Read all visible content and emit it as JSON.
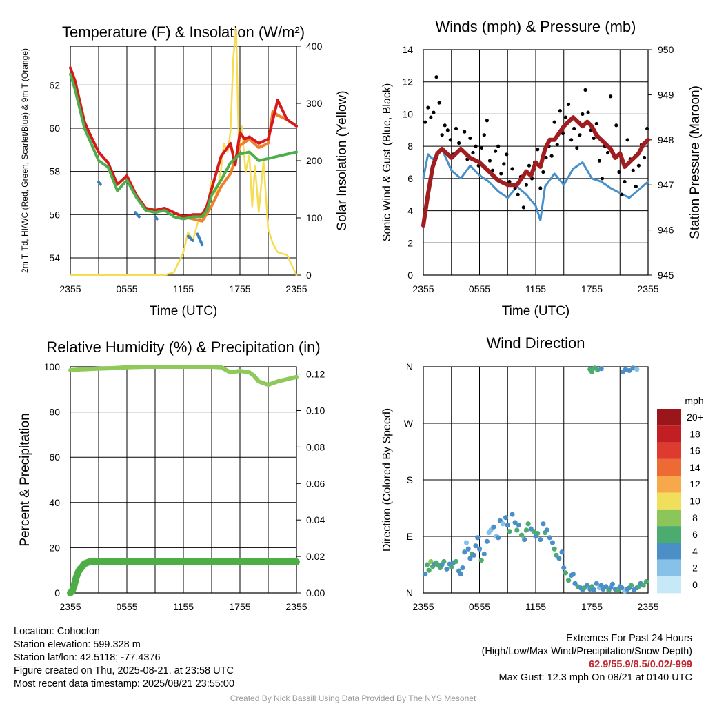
{
  "chart_data": [
    {
      "type": "line",
      "title": "Temperature (F) & Insolation (W/m²)",
      "xlabel": "Time (UTC)",
      "ylabel": "2m T, Td, HI/WC (Red, Green, Scarlet/Blue) & 9m T (Orange)",
      "y2label": "Solar Insolation (Yellow)",
      "x_ticks": [
        "2355",
        "0555",
        "1155",
        "1755",
        "2355"
      ],
      "ylim": [
        53.2,
        63.8
      ],
      "y_ticks": [
        54,
        56,
        58,
        60,
        62
      ],
      "y2lim": [
        0,
        400
      ],
      "y2_ticks": [
        0,
        100,
        200,
        300,
        400
      ],
      "grid": true,
      "colors": {
        "temp": "#d7191c",
        "dewpoint": "#4daf4a",
        "hiwc": "#3a7fbf",
        "t9m": "#f07f2c",
        "solar": "#f5dc50"
      },
      "series": [
        {
          "key": "temp",
          "x": [
            0,
            0.5,
            1.5,
            2,
            3,
            4,
            5,
            6,
            7,
            8,
            9,
            10,
            11,
            12,
            13,
            14,
            14.5,
            15,
            16,
            17,
            17.5,
            18,
            18.5,
            19,
            20,
            21,
            22,
            23,
            24
          ],
          "values": [
            62.8,
            62.2,
            60.3,
            59.8,
            58.9,
            58.4,
            57.4,
            57.8,
            56.9,
            56.3,
            56.2,
            56.3,
            56.1,
            55.9,
            56.0,
            56.0,
            56.4,
            57.2,
            58.7,
            59.3,
            58.3,
            59.8,
            59.5,
            59.6,
            59.3,
            59.5,
            61.3,
            60.4,
            60.1
          ]
        },
        {
          "key": "dewpoint",
          "x": [
            0,
            0.5,
            1.5,
            2,
            3,
            4,
            5,
            6,
            7,
            8,
            9,
            10,
            11,
            12,
            13,
            14,
            14.5,
            15,
            16,
            17,
            18,
            19,
            20,
            21,
            22,
            23,
            24
          ],
          "values": [
            62.5,
            61.8,
            60.0,
            59.5,
            58.5,
            58.2,
            57.1,
            57.6,
            56.8,
            56.2,
            56.1,
            56.2,
            55.9,
            55.8,
            55.9,
            55.9,
            56.2,
            56.9,
            57.6,
            58.4,
            58.8,
            58.9,
            58.5,
            58.6,
            58.7,
            58.8,
            58.9
          ]
        },
        {
          "key": "t9m",
          "x": [
            12,
            13,
            14,
            15,
            16,
            17,
            18,
            19,
            20,
            21,
            21.5,
            22,
            23,
            24
          ],
          "values": [
            55.9,
            55.8,
            55.7,
            56.4,
            57.3,
            57.9,
            59.2,
            59.5,
            59.1,
            59.3,
            60.8,
            60.6,
            60.4,
            60.1
          ]
        },
        {
          "key": "hiwc",
          "x": [
            3,
            3.2,
            6.9,
            7.3,
            9,
            9.2,
            12.5,
            13,
            13.5,
            14,
            14.3
          ],
          "values": [
            57.5,
            57.4,
            56.1,
            55.9,
            55.9,
            55.8,
            55.0,
            54.8,
            55.1,
            54.6,
            55.3
          ]
        },
        {
          "key": "solar",
          "axis": "y2",
          "x": [
            0,
            10,
            11,
            12,
            12.5,
            13,
            13.5,
            14,
            14.5,
            15,
            15.5,
            16,
            16.3,
            16.7,
            17,
            17.3,
            17.6,
            17.9,
            18.2,
            18.6,
            19,
            19.3,
            19.6,
            20,
            20.5,
            21,
            21.5,
            22,
            23,
            24
          ],
          "values": [
            0,
            0,
            5,
            40,
            75,
            60,
            90,
            110,
            115,
            165,
            140,
            185,
            230,
            215,
            250,
            380,
            430,
            215,
            260,
            180,
            210,
            120,
            190,
            110,
            200,
            80,
            55,
            40,
            35,
            0
          ]
        }
      ]
    },
    {
      "type": "line",
      "title": "Winds (mph) & Pressure (mb)",
      "xlabel": "Time (UTC)",
      "ylabel": "Sonic Wind & Gust (Blue, Black)",
      "y2label": "Station Pressure (Maroon)",
      "x_ticks": [
        "2355",
        "0555",
        "1155",
        "1755",
        "2355"
      ],
      "ylim": [
        0,
        14
      ],
      "y_ticks": [
        0,
        2,
        4,
        6,
        8,
        10,
        12,
        14
      ],
      "y2lim": [
        945,
        950
      ],
      "y2_ticks": [
        945,
        946,
        947,
        948,
        949,
        950
      ],
      "grid": true,
      "colors": {
        "wind": "#4a90c8",
        "gust": "#000000",
        "pressure": "#a01d20"
      },
      "series": [
        {
          "key": "wind",
          "x": [
            0,
            0.5,
            1,
            2,
            3,
            4,
            5,
            6,
            7,
            8,
            9,
            10,
            11,
            12,
            12.5,
            13,
            14,
            15,
            16,
            17,
            18,
            19,
            20,
            21,
            22,
            23,
            24
          ],
          "values": [
            6.0,
            7.5,
            7.2,
            7.8,
            6.5,
            6.0,
            6.8,
            6.2,
            5.8,
            5.2,
            4.8,
            5.5,
            5.0,
            4.3,
            3.4,
            5.5,
            6.3,
            5.6,
            6.6,
            7.0,
            6.0,
            5.8,
            5.4,
            5.1,
            4.8,
            5.3,
            5.8
          ]
        },
        {
          "key": "gust",
          "x": [
            0.2,
            0.5,
            0.8,
            1.1,
            1.4,
            1.7,
            2.0,
            2.3,
            2.6,
            2.9,
            3.2,
            3.5,
            3.8,
            4.1,
            4.4,
            4.7,
            5.0,
            5.3,
            5.6,
            5.9,
            6.2,
            6.5,
            6.8,
            7.1,
            7.4,
            7.7,
            8.0,
            8.3,
            8.6,
            8.9,
            9.2,
            9.5,
            9.8,
            10.1,
            10.4,
            10.7,
            11.0,
            11.3,
            11.6,
            11.9,
            12.2,
            12.5,
            12.8,
            13.1,
            13.4,
            13.7,
            14.0,
            14.3,
            14.6,
            14.9,
            15.2,
            15.5,
            15.8,
            16.1,
            16.4,
            16.7,
            17.0,
            17.3,
            17.6,
            17.9,
            18.2,
            18.5,
            18.8,
            19.1,
            19.4,
            19.7,
            20.0,
            20.3,
            20.6,
            20.9,
            21.2,
            21.5,
            21.8,
            22.1,
            22.4,
            22.7,
            23.0,
            23.3,
            23.6,
            23.9
          ],
          "values": [
            9.5,
            10.4,
            9.8,
            10.1,
            12.3,
            10.7,
            8.7,
            9.3,
            9.0,
            8.4,
            7.5,
            9.1,
            8.2,
            7.8,
            8.9,
            7.2,
            8.5,
            7.6,
            8.0,
            6.8,
            7.9,
            8.7,
            9.6,
            7.1,
            6.5,
            7.7,
            8.0,
            6.3,
            6.9,
            7.5,
            5.8,
            6.6,
            5.4,
            5.0,
            6.1,
            4.2,
            5.6,
            6.8,
            6.0,
            7.0,
            7.8,
            5.4,
            6.4,
            7.3,
            8.0,
            7.4,
            9.5,
            8.1,
            10.2,
            8.8,
            9.8,
            10.6,
            8.4,
            9.1,
            7.9,
            8.7,
            10.0,
            11.5,
            10.1,
            9.0,
            8.5,
            9.4,
            7.1,
            6.0,
            8.0,
            7.6,
            11.1,
            7.4,
            9.3,
            6.4,
            5.0,
            5.8,
            8.4,
            7.2,
            6.5,
            5.5,
            6.8,
            8.1,
            7.3,
            9.1
          ]
        },
        {
          "key": "pressure",
          "axis": "y2",
          "x": [
            0,
            0.5,
            1,
            1.5,
            2,
            3,
            4,
            5,
            6,
            7,
            8,
            9,
            10,
            11,
            11.5,
            12,
            12.5,
            13,
            13.5,
            14,
            15,
            16,
            17,
            17.5,
            18,
            18.5,
            19,
            20,
            20.5,
            21,
            21.5,
            22,
            23,
            23.5,
            24
          ],
          "values": [
            946.1,
            946.8,
            947.4,
            947.7,
            947.8,
            947.6,
            947.8,
            947.6,
            947.5,
            947.3,
            947.1,
            947.0,
            947.0,
            947.3,
            947.2,
            947.5,
            947.4,
            947.8,
            948.0,
            948.0,
            948.3,
            948.5,
            948.3,
            948.4,
            948.3,
            948.1,
            948.0,
            947.8,
            947.6,
            947.7,
            947.4,
            947.5,
            947.7,
            947.9,
            948.0
          ]
        }
      ]
    },
    {
      "type": "line",
      "title": "Relative Humidity (%) & Precipitation (in)",
      "ylabel": "Percent & Precipitation",
      "x_ticks": [
        "2355",
        "0555",
        "1155",
        "1755",
        "2355"
      ],
      "ylim": [
        0,
        100
      ],
      "y_ticks": [
        0,
        20,
        40,
        60,
        80,
        100
      ],
      "y2lim": [
        0,
        0.124
      ],
      "y2_ticks": [
        "0.00",
        "0.02",
        "0.04",
        "0.06",
        "0.08",
        "0.10",
        "0.12"
      ],
      "grid": true,
      "colors": {
        "rh": "#8fc95a",
        "precip": "#4dae45"
      },
      "series": [
        {
          "key": "rh",
          "x": [
            0,
            1,
            2,
            3,
            4,
            5,
            6,
            8,
            10,
            12,
            14,
            15,
            16,
            17,
            18,
            19,
            19.5,
            20,
            21,
            22,
            23,
            24
          ],
          "values": [
            98.5,
            98.8,
            99.0,
            99.2,
            99.3,
            99.5,
            99.8,
            100,
            100,
            100,
            100,
            100,
            99.8,
            97.5,
            98.2,
            97.5,
            96.0,
            93.5,
            92.0,
            93.5,
            94.5,
            95.5
          ]
        },
        {
          "key": "precip",
          "axis": "y2",
          "x": [
            0,
            0.2,
            0.4,
            0.6,
            0.8,
            1.0,
            1.2,
            1.5,
            2,
            3,
            6,
            12,
            18,
            24
          ],
          "values": [
            0,
            0.001,
            0.004,
            0.008,
            0.011,
            0.013,
            0.014,
            0.016,
            0.017,
            0.017,
            0.017,
            0.017,
            0.017,
            0.017
          ]
        }
      ]
    },
    {
      "type": "scatter",
      "title": "Wind Direction",
      "ylabel": "Direction (Colored By Speed)",
      "x_ticks": [
        "2355",
        "0555",
        "1155",
        "1755",
        "2355"
      ],
      "ylim": [
        0,
        360
      ],
      "y_ticks": [
        "N",
        "E",
        "S",
        "W",
        "N"
      ],
      "grid": true,
      "legend": {
        "title": "mph",
        "labels": [
          "0",
          "2",
          "4",
          "6",
          "8",
          "10",
          "12",
          "14",
          "16",
          "18",
          "20+"
        ],
        "colors": [
          "#c6e8f7",
          "#86c2e8",
          "#4b8fc8",
          "#4cab6e",
          "#8cc65a",
          "#f1de5b",
          "#f7a84a",
          "#ee6a35",
          "#de3a2f",
          "#c21f24",
          "#9a161b"
        ]
      },
      "points": {
        "x": [
          0.2,
          0.4,
          0.6,
          0.8,
          1.0,
          1.2,
          1.4,
          1.6,
          1.8,
          2.0,
          2.2,
          2.5,
          2.8,
          3.0,
          3.2,
          3.5,
          3.8,
          4.0,
          4.2,
          4.4,
          4.6,
          4.8,
          5.0,
          5.2,
          5.4,
          5.6,
          5.8,
          6.0,
          6.2,
          6.5,
          6.8,
          7.0,
          7.2,
          7.5,
          7.8,
          8.0,
          8.2,
          8.5,
          8.8,
          9.0,
          9.2,
          9.5,
          9.8,
          10.0,
          10.2,
          10.5,
          10.8,
          11.0,
          11.2,
          11.5,
          11.8,
          12.0,
          12.2,
          12.5,
          12.8,
          13.0,
          13.2,
          13.5,
          13.8,
          14.0,
          14.2,
          14.5,
          14.8,
          15.0,
          15.2,
          15.5,
          15.8,
          16.0,
          16.2,
          16.5,
          16.8,
          17.0,
          17.2,
          17.5,
          17.8,
          18.0,
          18.2,
          18.5,
          18.8,
          19.0,
          19.2,
          19.5,
          19.8,
          20.0,
          20.2,
          20.5,
          20.8,
          21.0,
          21.2,
          21.5,
          21.8,
          22.0,
          22.2,
          22.5,
          22.8,
          23.0,
          23.2,
          23.5,
          23.8,
          17.8,
          18.0,
          18.3,
          18.6,
          19.0,
          21.3,
          21.6,
          22.0,
          22.4,
          22.8
        ],
        "y": [
          30,
          45,
          36,
          50,
          42,
          46,
          48,
          44,
          40,
          45,
          50,
          38,
          46,
          41,
          48,
          50,
          35,
          30,
          40,
          65,
          80,
          70,
          55,
          62,
          60,
          75,
          88,
          70,
          52,
          62,
          82,
          96,
          100,
          105,
          90,
          88,
          115,
          110,
          120,
          108,
          98,
          125,
          112,
          100,
          108,
          92,
          85,
          100,
          110,
          102,
          98,
          90,
          95,
          85,
          110,
          96,
          100,
          88,
          80,
          70,
          60,
          55,
          65,
          40,
          32,
          20,
          28,
          30,
          15,
          10,
          8,
          5,
          8,
          12,
          6,
          10,
          5,
          15,
          8,
          12,
          6,
          10,
          4,
          8,
          14,
          6,
          5,
          10,
          8,
          3,
          6,
          8,
          12,
          5,
          8,
          10,
          15,
          12,
          18,
          356,
          352,
          358,
          355,
          357,
          352,
          356,
          354,
          358,
          356
        ],
        "speed": [
          5,
          6,
          7,
          8,
          6,
          5,
          6,
          7,
          6,
          5,
          6,
          4,
          5,
          6,
          5,
          6,
          4,
          5,
          5,
          4,
          3,
          4,
          5,
          6,
          5,
          4,
          4,
          5,
          6,
          5,
          4,
          3,
          3,
          4,
          3,
          5,
          4,
          3,
          4,
          5,
          6,
          4,
          4,
          6,
          5,
          6,
          5,
          6,
          7,
          5,
          6,
          5,
          6,
          4,
          5,
          6,
          5,
          4,
          5,
          6,
          6,
          5,
          4,
          5,
          6,
          6,
          5,
          4,
          5,
          6,
          4,
          5,
          6,
          4,
          5,
          6,
          4,
          5,
          3,
          4,
          5,
          4,
          6,
          5,
          4,
          5,
          6,
          4,
          5,
          3,
          4,
          5,
          6,
          4,
          5,
          6,
          5,
          6,
          6,
          6,
          7,
          6,
          6,
          5,
          4,
          5,
          4,
          4,
          3
        ]
      }
    }
  ],
  "station": {
    "location": "Location: Cohocton",
    "elevation": "Station elevation: 599.328 m",
    "latlon": "Station lat/lon: 42.5118; -77.4376",
    "created": "Figure created on Thu, 2025-08-21, at 23:58 UTC",
    "recent": "Most recent data timestamp: 2025/08/21 23:55:00"
  },
  "extremes": {
    "heading": "Extremes For Past 24 Hours",
    "subheading": "(High/Low/Max Wind/Precipitation/Snow Depth)",
    "values": "62.9/55.9/8.5/0.02/-999",
    "gust": "Max Gust: 12.3 mph On 08/21 at 0140 UTC"
  },
  "credit": "Created By Nick Bassill Using Data Provided By The NYS Mesonet"
}
